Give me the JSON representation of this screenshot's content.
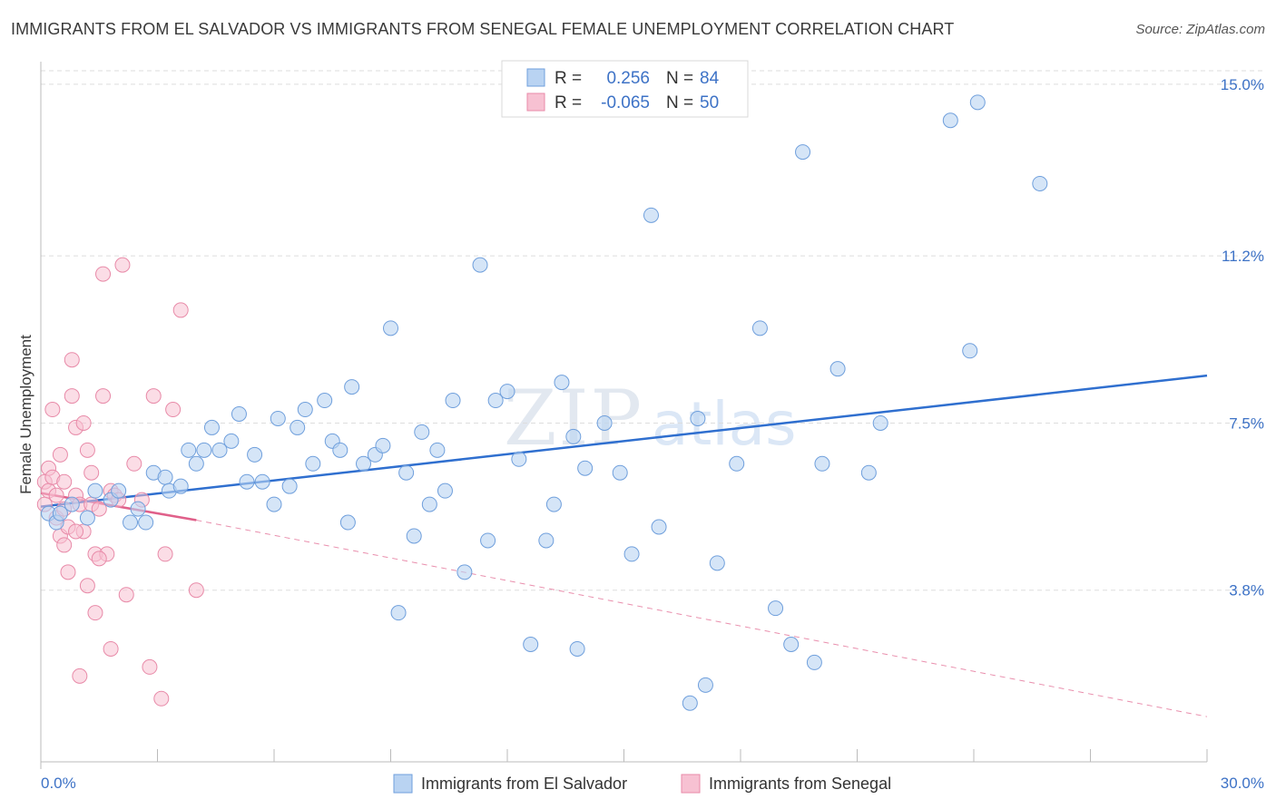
{
  "title": "IMMIGRANTS FROM EL SALVADOR VS IMMIGRANTS FROM SENEGAL FEMALE UNEMPLOYMENT CORRELATION CHART",
  "source": "Source: ZipAtlas.com",
  "watermark": {
    "zip": "ZIP",
    "atlas": "atlas"
  },
  "colors": {
    "blue_fill": "#b9d3f2",
    "blue_stroke": "#6f9fdc",
    "blue_line": "#2f6fcf",
    "pink_fill": "#f7c1d2",
    "pink_stroke": "#e88aa8",
    "pink_line": "#e0608a",
    "axis_text": "#3d72c6",
    "grid": "#dddddd"
  },
  "legend": {
    "rows": [
      {
        "r_label": "R =",
        "r_value": "0.256",
        "n_label": "N =",
        "n_value": "84"
      },
      {
        "r_label": "R =",
        "r_value": "-0.065",
        "n_label": "N =",
        "n_value": "50"
      }
    ]
  },
  "bottom_legend": {
    "series1": "Immigrants from El Salvador",
    "series2": "Immigrants from Senegal"
  },
  "chart_data": {
    "type": "scatter",
    "ylabel": "Female Unemployment",
    "xlim": [
      0,
      30
    ],
    "ylim": [
      0,
      15.5
    ],
    "x_tick_labels": [
      "0.0%",
      "30.0%"
    ],
    "y_ticks": [
      3.8,
      7.5,
      11.2,
      15.0
    ],
    "y_tick_labels": [
      "3.8%",
      "7.5%",
      "11.2%",
      "15.0%"
    ],
    "grid": "horizontal dashed",
    "series": [
      {
        "name": "Immigrants from El Salvador",
        "color": "#b9d3f2",
        "trend": {
          "x0": 0,
          "y0": 5.65,
          "x1": 30,
          "y1": 8.55
        },
        "points": [
          [
            0.2,
            5.5
          ],
          [
            0.4,
            5.3
          ],
          [
            0.5,
            5.5
          ],
          [
            0.8,
            5.7
          ],
          [
            1.2,
            5.4
          ],
          [
            1.4,
            6.0
          ],
          [
            1.8,
            5.8
          ],
          [
            2.0,
            6.0
          ],
          [
            2.3,
            5.3
          ],
          [
            2.5,
            5.6
          ],
          [
            2.7,
            5.3
          ],
          [
            2.9,
            6.4
          ],
          [
            3.2,
            6.3
          ],
          [
            3.3,
            6.0
          ],
          [
            3.6,
            6.1
          ],
          [
            3.8,
            6.9
          ],
          [
            4.0,
            6.6
          ],
          [
            4.2,
            6.9
          ],
          [
            4.4,
            7.4
          ],
          [
            4.6,
            6.9
          ],
          [
            4.9,
            7.1
          ],
          [
            5.1,
            7.7
          ],
          [
            5.3,
            6.2
          ],
          [
            5.5,
            6.8
          ],
          [
            5.7,
            6.2
          ],
          [
            6.0,
            5.7
          ],
          [
            6.1,
            7.6
          ],
          [
            6.4,
            6.1
          ],
          [
            6.6,
            7.4
          ],
          [
            6.8,
            7.8
          ],
          [
            7.0,
            6.6
          ],
          [
            7.3,
            8.0
          ],
          [
            7.5,
            7.1
          ],
          [
            7.7,
            6.9
          ],
          [
            7.9,
            5.3
          ],
          [
            8.0,
            8.3
          ],
          [
            8.3,
            6.6
          ],
          [
            8.6,
            6.8
          ],
          [
            8.8,
            7.0
          ],
          [
            9.0,
            9.6
          ],
          [
            9.2,
            3.3
          ],
          [
            9.4,
            6.4
          ],
          [
            9.6,
            5.0
          ],
          [
            9.8,
            7.3
          ],
          [
            10.0,
            5.7
          ],
          [
            10.2,
            6.9
          ],
          [
            10.4,
            6.0
          ],
          [
            10.6,
            8.0
          ],
          [
            10.9,
            4.2
          ],
          [
            11.3,
            11.0
          ],
          [
            11.5,
            4.9
          ],
          [
            11.7,
            8.0
          ],
          [
            12.0,
            8.2
          ],
          [
            12.3,
            6.7
          ],
          [
            12.6,
            2.6
          ],
          [
            13.0,
            4.9
          ],
          [
            13.2,
            5.7
          ],
          [
            13.4,
            8.4
          ],
          [
            13.7,
            7.2
          ],
          [
            13.8,
            2.5
          ],
          [
            14.0,
            6.5
          ],
          [
            14.5,
            7.5
          ],
          [
            14.9,
            6.4
          ],
          [
            15.2,
            4.6
          ],
          [
            15.7,
            12.1
          ],
          [
            15.9,
            5.2
          ],
          [
            16.7,
            1.3
          ],
          [
            16.9,
            7.6
          ],
          [
            17.1,
            1.7
          ],
          [
            17.4,
            4.4
          ],
          [
            17.9,
            6.6
          ],
          [
            18.5,
            9.6
          ],
          [
            18.9,
            3.4
          ],
          [
            19.3,
            2.6
          ],
          [
            19.6,
            13.5
          ],
          [
            19.9,
            2.2
          ],
          [
            20.1,
            6.6
          ],
          [
            20.5,
            8.7
          ],
          [
            21.3,
            6.4
          ],
          [
            21.6,
            7.5
          ],
          [
            23.4,
            14.2
          ],
          [
            24.1,
            14.6
          ],
          [
            25.7,
            12.8
          ],
          [
            23.9,
            9.1
          ]
        ]
      },
      {
        "name": "Immigrants from Senegal",
        "color": "#f7c1d2",
        "trend": {
          "x0": 0,
          "y0": 5.95,
          "x1": 4.0,
          "y1": 5.35
        },
        "trend_extended": {
          "x0": 4.0,
          "y0": 5.35,
          "x1": 30,
          "y1": 1.0
        },
        "points": [
          [
            0.1,
            6.2
          ],
          [
            0.1,
            5.7
          ],
          [
            0.2,
            6.5
          ],
          [
            0.2,
            6.0
          ],
          [
            0.3,
            7.8
          ],
          [
            0.3,
            6.3
          ],
          [
            0.4,
            5.9
          ],
          [
            0.4,
            5.4
          ],
          [
            0.5,
            6.8
          ],
          [
            0.5,
            5.0
          ],
          [
            0.6,
            5.6
          ],
          [
            0.6,
            4.8
          ],
          [
            0.7,
            4.2
          ],
          [
            0.7,
            5.2
          ],
          [
            0.8,
            8.1
          ],
          [
            0.8,
            8.9
          ],
          [
            0.9,
            7.4
          ],
          [
            0.9,
            5.9
          ],
          [
            1.0,
            5.7
          ],
          [
            1.0,
            1.9
          ],
          [
            1.1,
            7.5
          ],
          [
            1.1,
            5.1
          ],
          [
            1.2,
            6.9
          ],
          [
            1.2,
            3.9
          ],
          [
            1.3,
            6.4
          ],
          [
            1.3,
            5.7
          ],
          [
            1.4,
            3.3
          ],
          [
            1.4,
            4.6
          ],
          [
            1.5,
            5.6
          ],
          [
            1.6,
            8.1
          ],
          [
            1.6,
            10.8
          ],
          [
            1.7,
            4.6
          ],
          [
            1.8,
            2.5
          ],
          [
            1.8,
            6.0
          ],
          [
            1.9,
            5.9
          ],
          [
            2.0,
            5.8
          ],
          [
            2.1,
            11.0
          ],
          [
            2.2,
            3.7
          ],
          [
            2.4,
            6.6
          ],
          [
            2.6,
            5.8
          ],
          [
            2.8,
            2.1
          ],
          [
            2.9,
            8.1
          ],
          [
            3.1,
            1.4
          ],
          [
            3.2,
            4.6
          ],
          [
            3.4,
            7.8
          ],
          [
            3.6,
            10.0
          ],
          [
            4.0,
            3.8
          ],
          [
            1.5,
            4.5
          ],
          [
            0.9,
            5.1
          ],
          [
            0.6,
            6.2
          ]
        ]
      }
    ]
  }
}
